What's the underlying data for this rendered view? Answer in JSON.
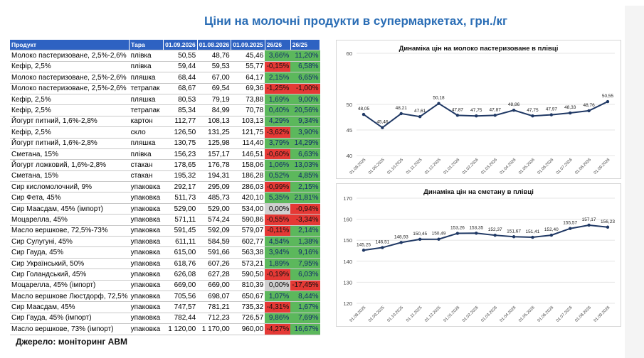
{
  "title": "Ціни на молочні продукти в супермаркетах, грн./кг",
  "source": "Джерело: моніторинг АВМ",
  "table": {
    "headers": [
      "Продукт",
      "Тара",
      "01.09.2026",
      "01.08.2026",
      "01.09.2025",
      "26/26",
      "26/25"
    ],
    "rows": [
      [
        "Молоко пастеризоване, 2,5%-2,6%",
        "плівка",
        "50,55",
        "48,76",
        "45,46",
        "3,66%",
        "11,20%"
      ],
      [
        "Кефір, 2,5%",
        "плівка",
        "59,44",
        "59,53",
        "55,77",
        "-0,15%",
        "6,58%"
      ],
      [
        "Молоко пастеризоване, 2,5%-2,6%",
        "пляшка",
        "68,44",
        "67,00",
        "64,17",
        "2,15%",
        "6,65%"
      ],
      [
        "Молоко пастеризоване, 2,5%-2,6%",
        "тетрапак",
        "68,67",
        "69,54",
        "69,36",
        "-1,25%",
        "-1,00%"
      ],
      [
        "Кефір, 2,5%",
        "пляшка",
        "80,53",
        "79,19",
        "73,88",
        "1,69%",
        "9,00%"
      ],
      [
        "Кефір, 2,5%",
        "тетрапак",
        "85,34",
        "84,99",
        "70,78",
        "0,40%",
        "20,56%"
      ],
      [
        "Йогурт питний, 1,6%-2,8%",
        "картон",
        "112,77",
        "108,13",
        "103,13",
        "4,29%",
        "9,34%"
      ],
      [
        "Кефір, 2,5%",
        "скло",
        "126,50",
        "131,25",
        "121,75",
        "-3,62%",
        "3,90%"
      ],
      [
        "Йогурт питний, 1,6%-2,8%",
        "пляшка",
        "130,75",
        "125,98",
        "114,40",
        "3,79%",
        "14,29%"
      ],
      [
        "Сметана, 15%",
        "плівка",
        "156,23",
        "157,17",
        "146,51",
        "-0,60%",
        "6,63%"
      ],
      [
        "Йогурт ложковий, 1,6%-2,8%",
        "стакан",
        "178,65",
        "176,78",
        "158,06",
        "1,06%",
        "13,03%"
      ],
      [
        "Сметана, 15%",
        "стакан",
        "195,32",
        "194,31",
        "186,28",
        "0,52%",
        "4,85%"
      ],
      [
        "Сир кисломолочний, 9%",
        "упаковка",
        "292,17",
        "295,09",
        "286,03",
        "-0,99%",
        "2,15%"
      ],
      [
        "Сир Фета, 45%",
        "упаковка",
        "511,73",
        "485,73",
        "420,10",
        "5,35%",
        "21,81%"
      ],
      [
        "Сир Маасдам, 45% (імпорт)",
        "упаковка",
        "529,00",
        "529,00",
        "534,00",
        "0,00%",
        "-0,94%"
      ],
      [
        "Моцарелла, 45%",
        "упаковка",
        "571,11",
        "574,24",
        "590,86",
        "-0,55%",
        "-3,34%"
      ],
      [
        "Масло вершкове, 72,5%-73%",
        "упаковка",
        "591,45",
        "592,09",
        "579,07",
        "-0,11%",
        "2,14%"
      ],
      [
        "Сир Сулугуні, 45%",
        "упаковка",
        "611,11",
        "584,59",
        "602,77",
        "4,54%",
        "1,38%"
      ],
      [
        "Сир Гауда, 45%",
        "упаковка",
        "615,00",
        "591,66",
        "563,38",
        "3,94%",
        "9,16%"
      ],
      [
        "Сир Український, 50%",
        "упаковка",
        "618,76",
        "607,26",
        "573,21",
        "1,89%",
        "7,95%"
      ],
      [
        "Сир Голандський, 45%",
        "упаковка",
        "626,08",
        "627,28",
        "590,50",
        "-0,19%",
        "6,03%"
      ],
      [
        "Моцарелла, 45% (імпорт)",
        "упаковка",
        "669,00",
        "669,00",
        "810,39",
        "0,00%",
        "-17,45%"
      ],
      [
        "Масло вершкове Люстдорф, 72,5%",
        "упаковка",
        "705,56",
        "698,07",
        "650,67",
        "1,07%",
        "8,44%"
      ],
      [
        "Сир Маасдам, 45%",
        "упаковка",
        "747,57",
        "781,21",
        "735,32",
        "-4,31%",
        "1,67%"
      ],
      [
        "Сир Гауда, 45% (імпорт)",
        "упаковка",
        "782,44",
        "712,23",
        "726,57",
        "9,86%",
        "7,69%"
      ],
      [
        "Масло вершкове, 73% (імпорт)",
        "упаковка",
        "1 120,00",
        "1 170,00",
        "960,00",
        "-4,27%",
        "16,67%"
      ]
    ]
  },
  "colors": {
    "header": "#2e62c2",
    "positive": "#5cb85c",
    "negative": "#e53935",
    "zero": "#d0d0d0",
    "line": "#1f3864",
    "title": "#2a6db5"
  },
  "chart_data": [
    {
      "type": "line",
      "title": "Динаміка цін на молоко пастеризоване в плівці",
      "x": [
        "01.08.2025",
        "01.09.2025",
        "01.10.2025",
        "01.11.2025",
        "01.12.2025",
        "01.01.2026",
        "01.02.2026",
        "01.03.2026",
        "01.04.2026",
        "01.05.2026",
        "01.06.2026",
        "01.07.2026",
        "01.08.2026",
        "01.09.2026"
      ],
      "values": [
        48.05,
        45.46,
        48.21,
        47.61,
        50.18,
        47.87,
        47.75,
        47.87,
        48.86,
        47.75,
        47.97,
        48.33,
        48.76,
        50.55
      ],
      "labels": [
        "48,05",
        "45,46",
        "48,21",
        "47,61",
        "50,18",
        "47,87",
        "47,75",
        "47,87",
        "48,86",
        "47,75",
        "47,97",
        "48,33",
        "48,76",
        "50,55"
      ],
      "yticks": [
        "40",
        "45",
        "50",
        "60"
      ],
      "ytick_values": [
        40,
        45,
        50,
        60
      ],
      "ylim": [
        40,
        60
      ]
    },
    {
      "type": "line",
      "title": "Динаміка цін на сметану в плівці",
      "x": [
        "01.08.2025",
        "01.09.2025",
        "01.10.2025",
        "01.11.2025",
        "01.12.2025",
        "01.01.2026",
        "01.02.2026",
        "01.03.2026",
        "01.04.2026",
        "01.05.2026",
        "01.06.2026",
        "01.07.2026",
        "01.08.2026",
        "01.09.2026"
      ],
      "values": [
        145.25,
        146.51,
        148.93,
        150.45,
        150.49,
        153.26,
        153.35,
        152.37,
        151.67,
        151.41,
        152.4,
        155.57,
        157.17,
        156.23
      ],
      "labels": [
        "145,25",
        "146,51",
        "148,93",
        "150,45",
        "150,49",
        "153,26",
        "153,35",
        "152,37",
        "151,67",
        "151,41",
        "152,40",
        "155,57",
        "157,17",
        "156,23"
      ],
      "yticks": [
        "120",
        "130",
        "140",
        "150",
        "160",
        "170"
      ],
      "ytick_values": [
        120,
        130,
        140,
        150,
        160,
        170
      ],
      "ylim": [
        120,
        170
      ]
    }
  ]
}
